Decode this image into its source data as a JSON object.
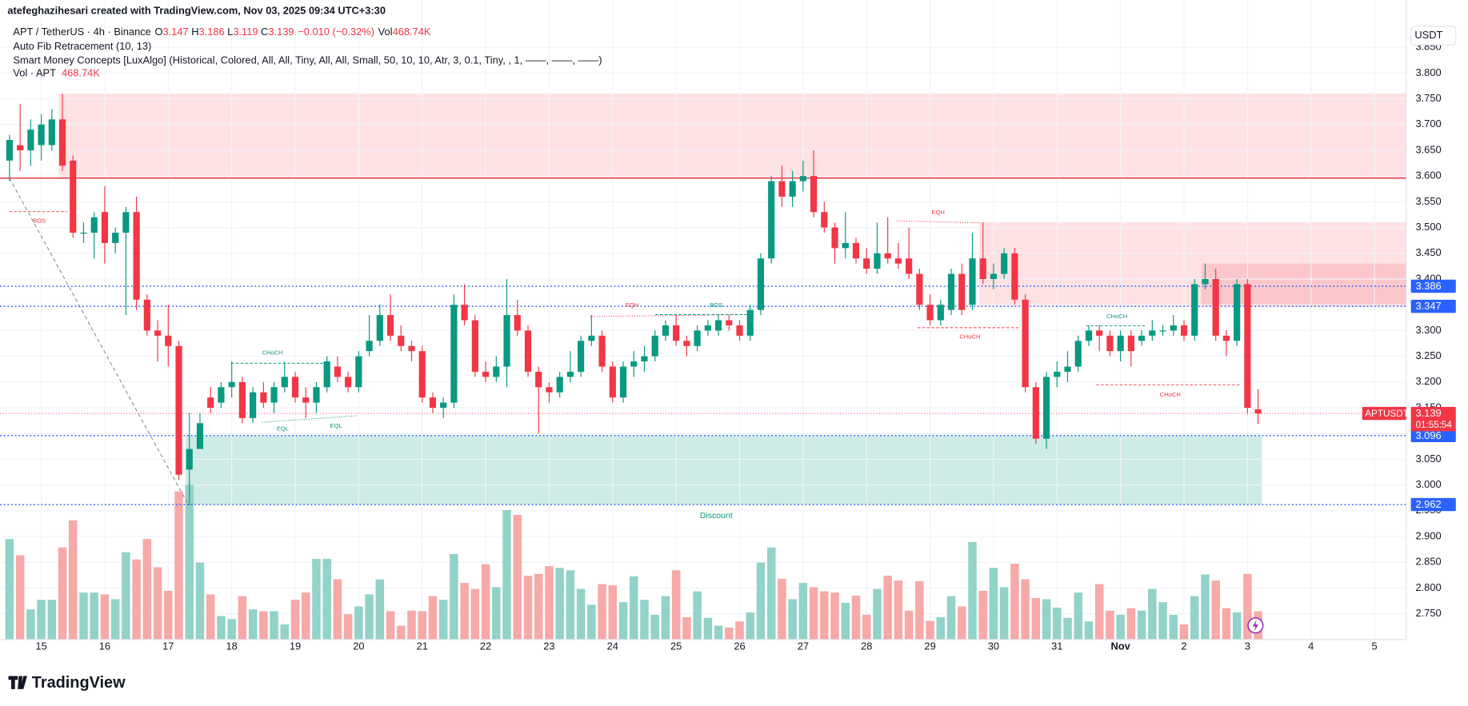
{
  "header": {
    "credit": "atefeghazihesari created with TradingView.com, Nov 03, 2025 09:34 UTC+3:30",
    "symbol": "APT / TetherUS · 4h · Binance",
    "o": "O",
    "h": "H",
    "l": "L",
    "c": "C",
    "change": "−0.010 (−0.32%)",
    "vol": "Vol",
    "vol_value": "468.74K",
    "indicators": [
      "Auto Fib Retracement (10, 13)",
      "Smart Money Concepts [LuxAlgo] (Historical, Colored, All, All, Tiny, All, All, Small, 50, 10, 10, Atr, 3, 0.1, Tiny, , 1, ——, ——, ——)",
      "Vol · APT"
    ],
    "currency": "USDT",
    "ticker": "APTUSDT",
    "countdown": "01:55:54",
    "logo": "TradingView"
  },
  "chart_data": {
    "type": "candlestick",
    "up_color": "#089981",
    "down_color": "#f23645",
    "up_volume_color": "#92d2c8",
    "down_volume_color": "#f7a9a7",
    "level_color": "#2962ff",
    "grid": true,
    "open": [
      3.63,
      3.66,
      3.65,
      3.66,
      3.66,
      3.71,
      3.63,
      3.49,
      3.49,
      3.53,
      3.47,
      3.49,
      3.53,
      3.36,
      3.3,
      3.29,
      3.27,
      3.03,
      3.07,
      3.17,
      3.16,
      3.19,
      3.2,
      3.13,
      3.18,
      3.16,
      3.19,
      3.21,
      3.17,
      3.16,
      3.19,
      3.23,
      3.21,
      3.19,
      3.26,
      3.28,
      3.33,
      3.29,
      3.27,
      3.26,
      3.17,
      3.15,
      3.16,
      3.35,
      3.32,
      3.22,
      3.21,
      3.23,
      3.33,
      3.3,
      3.22,
      3.19,
      3.18,
      3.21,
      3.22,
      3.28,
      3.29,
      3.23,
      3.17,
      3.23,
      3.24,
      3.25,
      3.29,
      3.31,
      3.28,
      3.27,
      3.3,
      3.3,
      3.32,
      3.31,
      3.29,
      3.34,
      3.44,
      3.59,
      3.56,
      3.59,
      3.6,
      3.53,
      3.5,
      3.46,
      3.47,
      3.44,
      3.42,
      3.45,
      3.44,
      3.44,
      3.41,
      3.35,
      3.32,
      3.34,
      3.41,
      3.35,
      3.44,
      3.4,
      3.41,
      3.45,
      3.36,
      3.19,
      3.09,
      3.21,
      3.22,
      3.23,
      3.28,
      3.3,
      3.29,
      3.26,
      3.29,
      3.28,
      3.29,
      3.3,
      3.3,
      3.31,
      3.29,
      3.39,
      3.4,
      3.29,
      3.28,
      3.39,
      3.147
    ],
    "high": [
      3.68,
      3.74,
      3.71,
      3.72,
      3.73,
      3.76,
      3.64,
      3.51,
      3.53,
      3.58,
      3.5,
      3.54,
      3.56,
      3.37,
      3.32,
      3.35,
      3.28,
      3.14,
      3.14,
      3.19,
      3.2,
      3.24,
      3.21,
      3.19,
      3.2,
      3.2,
      3.24,
      3.22,
      3.19,
      3.2,
      3.25,
      3.25,
      3.22,
      3.26,
      3.33,
      3.35,
      3.37,
      3.31,
      3.28,
      3.27,
      3.18,
      3.17,
      3.37,
      3.39,
      3.33,
      3.24,
      3.25,
      3.4,
      3.36,
      3.31,
      3.23,
      3.2,
      3.22,
      3.26,
      3.29,
      3.33,
      3.3,
      3.24,
      3.24,
      3.26,
      3.27,
      3.3,
      3.32,
      3.33,
      3.29,
      3.31,
      3.32,
      3.33,
      3.33,
      3.32,
      3.35,
      3.45,
      3.6,
      3.62,
      3.61,
      3.63,
      3.65,
      3.55,
      3.51,
      3.53,
      3.48,
      3.46,
      3.51,
      3.52,
      3.47,
      3.5,
      3.42,
      3.37,
      3.36,
      3.42,
      3.43,
      3.49,
      3.51,
      3.43,
      3.46,
      3.46,
      3.37,
      3.2,
      3.22,
      3.24,
      3.26,
      3.29,
      3.31,
      3.31,
      3.3,
      3.3,
      3.3,
      3.3,
      3.32,
      3.31,
      3.33,
      3.32,
      3.4,
      3.43,
      3.42,
      3.3,
      3.4,
      3.4,
      3.186
    ],
    "low": [
      3.59,
      3.61,
      3.62,
      3.63,
      3.65,
      3.61,
      3.48,
      3.47,
      3.44,
      3.43,
      3.45,
      3.33,
      3.34,
      3.29,
      3.24,
      3.23,
      3.01,
      2.96,
      3.07,
      3.14,
      3.15,
      3.17,
      3.12,
      3.12,
      3.15,
      3.14,
      3.18,
      3.16,
      3.13,
      3.14,
      3.18,
      3.2,
      3.18,
      3.18,
      3.25,
      3.27,
      3.28,
      3.26,
      3.24,
      3.16,
      3.14,
      3.13,
      3.15,
      3.31,
      3.21,
      3.2,
      3.2,
      3.19,
      3.29,
      3.21,
      3.1,
      3.16,
      3.17,
      3.2,
      3.21,
      3.27,
      3.22,
      3.16,
      3.16,
      3.21,
      3.22,
      3.24,
      3.28,
      3.27,
      3.25,
      3.26,
      3.29,
      3.29,
      3.3,
      3.28,
      3.28,
      3.33,
      3.43,
      3.54,
      3.54,
      3.57,
      3.52,
      3.49,
      3.43,
      3.44,
      3.43,
      3.41,
      3.41,
      3.43,
      3.42,
      3.4,
      3.34,
      3.31,
      3.31,
      3.33,
      3.33,
      3.34,
      3.39,
      3.38,
      3.4,
      3.35,
      3.18,
      3.08,
      3.07,
      3.19,
      3.2,
      3.22,
      3.27,
      3.26,
      3.25,
      3.24,
      3.23,
      3.27,
      3.28,
      3.29,
      3.29,
      3.28,
      3.28,
      3.38,
      3.28,
      3.25,
      3.27,
      3.14,
      3.119
    ],
    "close": [
      3.67,
      3.65,
      3.69,
      3.7,
      3.71,
      3.62,
      3.49,
      3.49,
      3.52,
      3.47,
      3.49,
      3.53,
      3.36,
      3.3,
      3.29,
      3.27,
      3.02,
      3.07,
      3.12,
      3.15,
      3.19,
      3.2,
      3.13,
      3.18,
      3.16,
      3.19,
      3.21,
      3.17,
      3.16,
      3.19,
      3.24,
      3.21,
      3.19,
      3.25,
      3.28,
      3.33,
      3.29,
      3.27,
      3.26,
      3.17,
      3.15,
      3.16,
      3.35,
      3.32,
      3.22,
      3.21,
      3.23,
      3.33,
      3.3,
      3.22,
      3.19,
      3.18,
      3.21,
      3.22,
      3.28,
      3.29,
      3.23,
      3.17,
      3.23,
      3.24,
      3.25,
      3.29,
      3.31,
      3.28,
      3.27,
      3.3,
      3.31,
      3.32,
      3.31,
      3.29,
      3.34,
      3.44,
      3.59,
      3.56,
      3.59,
      3.6,
      3.53,
      3.5,
      3.46,
      3.47,
      3.44,
      3.42,
      3.45,
      3.44,
      3.43,
      3.41,
      3.35,
      3.32,
      3.35,
      3.41,
      3.34,
      3.44,
      3.4,
      3.41,
      3.45,
      3.36,
      3.19,
      3.09,
      3.21,
      3.22,
      3.23,
      3.28,
      3.3,
      3.29,
      3.26,
      3.29,
      3.26,
      3.29,
      3.3,
      3.3,
      3.31,
      3.29,
      3.39,
      3.4,
      3.29,
      3.28,
      3.39,
      3.15,
      3.139
    ],
    "volume": [
      1670,
      1400,
      500,
      660,
      660,
      1530,
      1980,
      780,
      780,
      750,
      670,
      1450,
      1330,
      1670,
      1200,
      810,
      2460,
      2570,
      1280,
      750,
      390,
      340,
      720,
      500,
      470,
      470,
      250,
      660,
      780,
      1340,
      1340,
      1000,
      420,
      550,
      750,
      1000,
      470,
      230,
      480,
      470,
      720,
      660,
      1420,
      940,
      840,
      1250,
      870,
      2150,
      2070,
      1060,
      1090,
      1220,
      1190,
      1150,
      840,
      580,
      920,
      900,
      620,
      1050,
      660,
      410,
      720,
      1150,
      370,
      800,
      360,
      230,
      200,
      300,
      450,
      1280,
      1530,
      1010,
      670,
      940,
      870,
      800,
      780,
      610,
      730,
      410,
      840,
      1060,
      980,
      480,
      970,
      310,
      370,
      720,
      550,
      1620,
      810,
      1190,
      870,
      1260,
      1000,
      690,
      670,
      530,
      360,
      780,
      300,
      920,
      480,
      410,
      520,
      480,
      840,
      620,
      410,
      250,
      720,
      1080,
      980,
      520,
      450,
      1090,
      468.74
    ],
    "vlim": [
      0,
      2800
    ],
    "xlim": [
      -0.9,
      132
    ],
    "xticks": [
      {
        "value": 3,
        "label": "15"
      },
      {
        "value": 9,
        "label": "16"
      },
      {
        "value": 15,
        "label": "17"
      },
      {
        "value": 21,
        "label": "18"
      },
      {
        "value": 27,
        "label": "19"
      },
      {
        "value": 33,
        "label": "20"
      },
      {
        "value": 39,
        "label": "21"
      },
      {
        "value": 45,
        "label": "22"
      },
      {
        "value": 51,
        "label": "23"
      },
      {
        "value": 57,
        "label": "24"
      },
      {
        "value": 63,
        "label": "25"
      },
      {
        "value": 69,
        "label": "26"
      },
      {
        "value": 75,
        "label": "27"
      },
      {
        "value": 81,
        "label": "28"
      },
      {
        "value": 87,
        "label": "29"
      },
      {
        "value": 93,
        "label": "30"
      },
      {
        "value": 99,
        "label": "31"
      },
      {
        "value": 105,
        "label": "Nov"
      },
      {
        "value": 111,
        "label": "2"
      },
      {
        "value": 117,
        "label": "3"
      },
      {
        "value": 123,
        "label": "4"
      },
      {
        "value": 129,
        "label": "5"
      }
    ],
    "ylim": [
      2.7,
      3.9
    ],
    "yticks": [
      {
        "value": 2.75,
        "label": "2.750"
      },
      {
        "value": 2.8,
        "label": "2.800"
      },
      {
        "value": 2.85,
        "label": "2.850"
      },
      {
        "value": 2.9,
        "label": "2.900"
      },
      {
        "value": 2.95,
        "label": "2.950"
      },
      {
        "value": 3.0,
        "label": "3.000"
      },
      {
        "value": 3.05,
        "label": "3.050"
      },
      {
        "value": 3.1,
        "label": "3.100"
      },
      {
        "value": 3.15,
        "label": "3.150"
      },
      {
        "value": 3.2,
        "label": "3.200"
      },
      {
        "value": 3.25,
        "label": "3.250"
      },
      {
        "value": 3.3,
        "label": "3.300"
      },
      {
        "value": 3.35,
        "label": "3.350"
      },
      {
        "value": 3.4,
        "label": "3.400"
      },
      {
        "value": 3.45,
        "label": "3.450"
      },
      {
        "value": 3.5,
        "label": "3.500"
      },
      {
        "value": 3.55,
        "label": "3.550"
      },
      {
        "value": 3.6,
        "label": "3.600"
      },
      {
        "value": 3.65,
        "label": "3.650"
      },
      {
        "value": 3.7,
        "label": "3.700"
      },
      {
        "value": 3.75,
        "label": "3.750"
      },
      {
        "value": 3.8,
        "label": "3.800"
      },
      {
        "value": 3.85,
        "label": "3.850"
      }
    ],
    "levels": [
      3.386,
      3.347,
      3.096,
      2.962
    ],
    "zones": [
      {
        "top": 3.76,
        "bottom": 3.596,
        "color": "#f23645"
      },
      {
        "top": 3.51,
        "bottom": 3.347,
        "color": "#f23645"
      },
      {
        "top": 3.43,
        "bottom": 3.347,
        "color": "#f23645"
      },
      {
        "top": 3.096,
        "bottom": 2.962,
        "color": "#089981"
      }
    ],
    "annotations": [
      "BOS",
      "CHoCH",
      "EQL",
      "EQL",
      "EQH",
      "BOS",
      "EQH",
      "CHoCH",
      "CHoCH",
      "CHoCH",
      "Discount"
    ]
  }
}
